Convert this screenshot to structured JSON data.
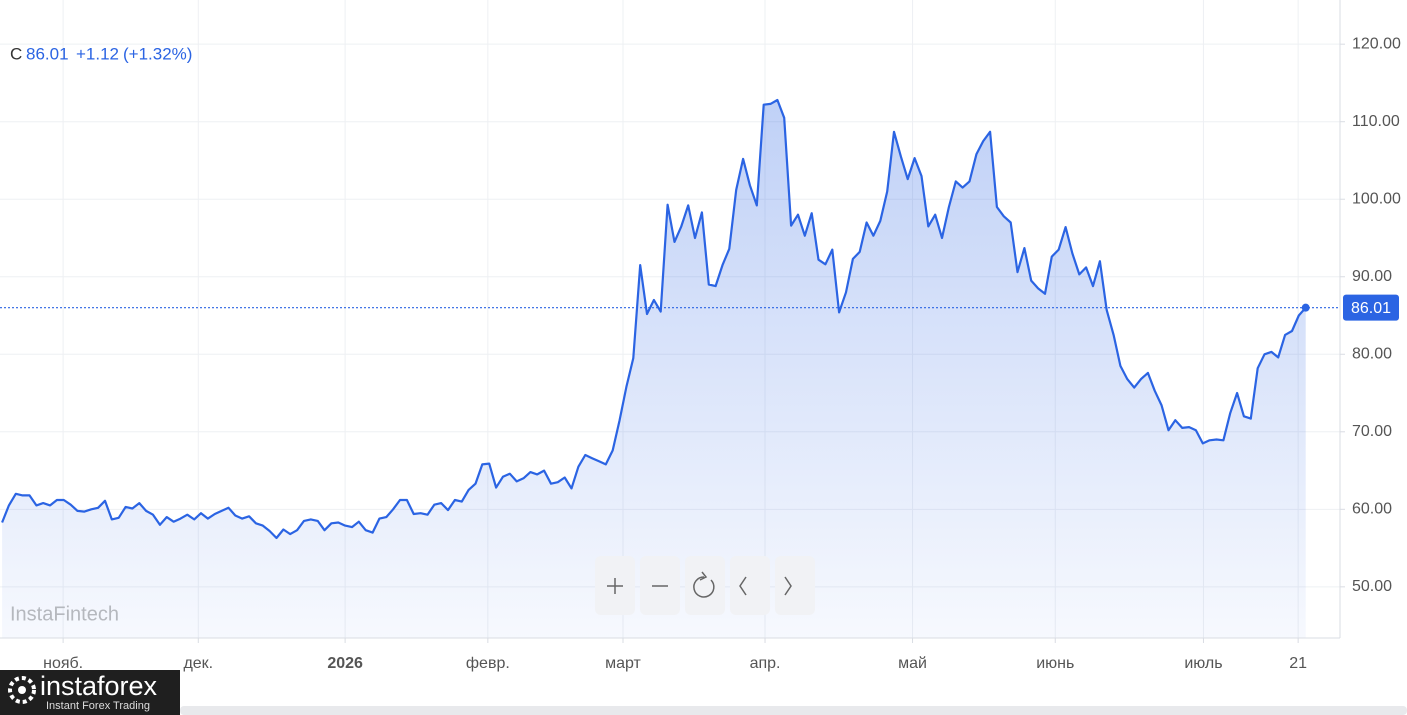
{
  "chart_data": {
    "type": "line",
    "symbol": "C",
    "change": "+1.12",
    "change_pct": "(+1.32%)",
    "watermark": "InstaFintech",
    "color": "#2b64e3",
    "grid": true,
    "last_price_line": true,
    "values": [
      58.3,
      60.5,
      62,
      61.8,
      61.8,
      60.5,
      60.8,
      60.5,
      61.2,
      61.2,
      60.6,
      59.8,
      59.7,
      60,
      60.2,
      61.1,
      58.7,
      58.9,
      60.3,
      60.1,
      60.8,
      59.8,
      59.3,
      58,
      59,
      58.4,
      58.8,
      59.3,
      58.7,
      59.5,
      58.8,
      59.4,
      59.8,
      60.2,
      59.2,
      58.8,
      59.1,
      58.2,
      57.9,
      57.2,
      56.3,
      57.4,
      56.8,
      57.3,
      58.5,
      58.7,
      58.5,
      57.3,
      58.2,
      58.3,
      57.9,
      57.7,
      58.4,
      57.3,
      57,
      58.8,
      59,
      60,
      61.2,
      61.2,
      59.4,
      59.5,
      59.3,
      60.6,
      60.8,
      59.9,
      61.2,
      61,
      62.5,
      63.3,
      65.8,
      65.9,
      62.8,
      64.2,
      64.6,
      63.6,
      64,
      64.8,
      64.5,
      65,
      63.3,
      63.5,
      64.1,
      62.7,
      65.5,
      67,
      66.6,
      66.2,
      65.8,
      67.6,
      71.5,
      75.8,
      79.5,
      91.5,
      85.2,
      87,
      85.5,
      99.3,
      94.5,
      96.5,
      99.2,
      95,
      98.3,
      89,
      88.8,
      91.5,
      93.6,
      101.2,
      105.2,
      101.8,
      99.2,
      112.2,
      112.3,
      112.8,
      110.5,
      96.6,
      98,
      95.3,
      98.2,
      92.2,
      91.6,
      93.5,
      85.4,
      88,
      92.3,
      93.2,
      97,
      95.3,
      97.2,
      101,
      108.7,
      105.5,
      102.6,
      105.3,
      103,
      96.5,
      98,
      95,
      99,
      102.3,
      101.5,
      102.3,
      105.8,
      107.5,
      108.7,
      99,
      97.8,
      97,
      90.6,
      93.7,
      89.5,
      88.5,
      87.8,
      92.6,
      93.5,
      96.4,
      93,
      90.3,
      91.2,
      88.8,
      92,
      85.7,
      82.5,
      78.5,
      76.8,
      75.7,
      76.8,
      77.6,
      75.3,
      73.4,
      70.2,
      71.5,
      70.5,
      70.6,
      70.2,
      68.5,
      68.9,
      69,
      68.9,
      72.4,
      75,
      72,
      71.7,
      78.2,
      80,
      80.3,
      79.6,
      82.5,
      83,
      85,
      86.01
    ],
    "xlim": [
      -0.3,
      195
    ],
    "xticks": [
      {
        "value": 8.9,
        "label": "нояб."
      },
      {
        "value": 28.6,
        "label": "дек."
      },
      {
        "value": 50,
        "label": "2026"
      },
      {
        "value": 70.8,
        "label": "февр."
      },
      {
        "value": 90.5,
        "label": "март"
      },
      {
        "value": 111.2,
        "label": "апр."
      },
      {
        "value": 132.7,
        "label": "май"
      },
      {
        "value": 153.5,
        "label": "июнь"
      },
      {
        "value": 175.1,
        "label": "июль"
      },
      {
        "value": 188.9,
        "label": "21"
      }
    ],
    "ylim": [
      43.4,
      125.7
    ],
    "yticks": [
      {
        "value": 50,
        "label": "50.00"
      },
      {
        "value": 60,
        "label": "60.00"
      },
      {
        "value": 70,
        "label": "70.00"
      },
      {
        "value": 80,
        "label": "80.00"
      },
      {
        "value": 90,
        "label": "90.00"
      },
      {
        "value": 100,
        "label": "100.00"
      },
      {
        "value": 110,
        "label": "110.00"
      },
      {
        "value": 120,
        "label": "120.00"
      }
    ]
  },
  "logo": {
    "name": "instaforex",
    "tagline": "Instant Forex Trading"
  }
}
